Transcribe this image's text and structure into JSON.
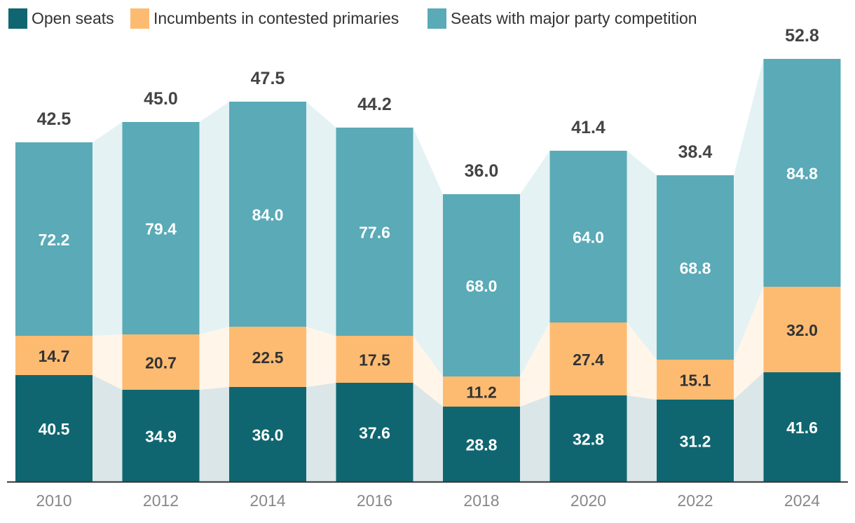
{
  "chart_data": {
    "type": "bar",
    "stacked": true,
    "categories": [
      "2010",
      "2012",
      "2014",
      "2016",
      "2018",
      "2020",
      "2022",
      "2024"
    ],
    "series": [
      {
        "name": "Open seats",
        "values": [
          "40.5",
          "34.9",
          "36.0",
          "37.6",
          "28.8",
          "32.8",
          "31.2",
          "41.6"
        ],
        "color": "#0f6670",
        "label_color": "#ffffff",
        "band_color": "#dae6e8"
      },
      {
        "name": "Incumbents in contested primaries",
        "values": [
          "14.7",
          "20.7",
          "22.5",
          "17.5",
          "11.2",
          "27.4",
          "15.1",
          "32.0"
        ],
        "color": "#fdbb72",
        "label_color": "#333333",
        "band_color": "#fff5e9"
      },
      {
        "name": "Seats with major party competition",
        "values": [
          "72.2",
          "79.4",
          "84.0",
          "77.6",
          "68.0",
          "64.0",
          "68.8",
          "84.8"
        ],
        "color": "#5aaab7",
        "label_color": "#ffffff",
        "band_color": "#e4f2f4"
      }
    ],
    "totals": [
      "42.5",
      "45.0",
      "47.5",
      "44.2",
      "36.0",
      "41.4",
      "38.4",
      "52.8"
    ],
    "legend_position": "top-left",
    "axis_color": "#333333",
    "grid": false
  }
}
